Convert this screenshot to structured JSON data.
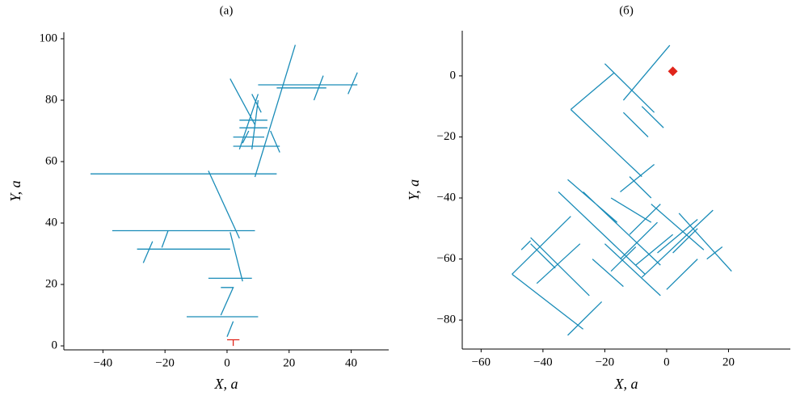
{
  "chart_data": [
    {
      "type": "line",
      "title": "(a)",
      "x_label": "X, a",
      "y_label": "Y, a",
      "xlim": [
        -52.6,
        52.1
      ],
      "ylim": [
        -1.3,
        102.1
      ],
      "xticks": [
        {
          "value": -40,
          "label": "−40"
        },
        {
          "value": -20,
          "label": "−20"
        },
        0,
        20,
        40
      ],
      "yticks": [
        0,
        20,
        40,
        60,
        80,
        100
      ],
      "series": [
        {
          "color": "#1a8cb8",
          "x": [
            -44,
            16,
            null,
            -37,
            9,
            null,
            -29,
            1,
            null,
            -19,
            -21,
            null,
            -27,
            -24,
            null,
            -6,
            4,
            null,
            1,
            5,
            null,
            -6,
            8,
            null,
            -13,
            10,
            null,
            -2,
            2,
            -2,
            null,
            2,
            0,
            null,
            1,
            9,
            null,
            10,
            4,
            null,
            4,
            13,
            null,
            2,
            12,
            null,
            2,
            17,
            null,
            8,
            11,
            null,
            9,
            22,
            null,
            10,
            42,
            null,
            16,
            32,
            null,
            28,
            31,
            null,
            39,
            42,
            null,
            14,
            17,
            null,
            5,
            7,
            null,
            8,
            10,
            null,
            4,
            13
          ],
          "values": [
            56,
            56,
            null,
            37.5,
            37.5,
            null,
            31.5,
            31.5,
            null,
            37.5,
            32,
            null,
            27,
            34,
            null,
            57,
            35,
            null,
            37,
            21,
            null,
            22,
            22,
            null,
            9.5,
            9.5,
            null,
            19,
            19,
            10,
            null,
            8,
            3,
            null,
            87,
            72,
            null,
            82,
            64,
            null,
            73.5,
            73.5,
            null,
            68,
            68,
            null,
            65,
            65,
            null,
            82,
            76,
            null,
            55,
            98,
            null,
            85,
            85,
            null,
            84,
            84,
            null,
            80,
            88,
            null,
            82,
            89,
            null,
            70,
            63,
            null,
            66,
            70,
            null,
            64,
            80,
            null,
            71,
            71
          ]
        },
        {
          "color": "#e0251b",
          "x": [
            0,
            4,
            null,
            2,
            2
          ],
          "values": [
            2,
            2,
            null,
            2,
            0
          ]
        }
      ]
    },
    {
      "type": "line",
      "title": "(б)",
      "x_label": "X, a",
      "y_label": "Y, a",
      "xlim": [
        -66.1,
        40
      ],
      "ylim": [
        -89.5,
        14.8
      ],
      "xticks": [
        {
          "value": -60,
          "label": "−60"
        },
        {
          "value": -40,
          "label": "−40"
        },
        {
          "value": -20,
          "label": "−20"
        },
        0,
        20
      ],
      "yticks": [
        {
          "value": -80,
          "label": "−80"
        },
        {
          "value": -60,
          "label": "−60"
        },
        {
          "value": -40,
          "label": "−40"
        },
        {
          "value": -20,
          "label": "−20"
        },
        0
      ],
      "series": [
        {
          "color": "#1a8cb8",
          "x": [
            -20,
            -4,
            null,
            -31,
            -8,
            null,
            -31,
            -17,
            null,
            -14,
            1,
            null,
            -8,
            -1,
            null,
            -14,
            -6,
            null,
            -15,
            -4,
            null,
            -12,
            -5,
            null,
            -50,
            -31,
            null,
            -50,
            -27,
            null,
            -32,
            -21,
            null,
            -44,
            -25,
            null,
            -32,
            -16,
            null,
            -35,
            -7,
            null,
            -27,
            -2,
            null,
            -42,
            -28,
            null,
            -5,
            -18,
            null,
            -12,
            -2,
            null,
            -5,
            12,
            null,
            -8,
            15,
            null,
            -20,
            -2,
            null,
            -3,
            10,
            null,
            4,
            21,
            null,
            -18,
            -10,
            null,
            0,
            10,
            null,
            -24,
            -14,
            null,
            -44,
            -36,
            null,
            -47,
            -44,
            null,
            2,
            10,
            null,
            -10,
            2,
            null,
            -3,
            -15,
            null,
            13,
            18
          ],
          "values": [
            4,
            -12,
            null,
            -11,
            -33,
            null,
            -11,
            1,
            null,
            -8,
            10,
            null,
            -10,
            -17,
            null,
            -12,
            -20,
            null,
            -38,
            -29,
            null,
            -33,
            -40,
            null,
            -65,
            -46,
            null,
            -65,
            -83,
            null,
            -85,
            -74,
            null,
            -53,
            -72,
            null,
            -34,
            -48,
            null,
            -38,
            -65,
            null,
            -38,
            -62,
            null,
            -68,
            -55,
            null,
            -48,
            -40,
            null,
            -52,
            -42,
            null,
            -42,
            -57,
            null,
            -66,
            -44,
            null,
            -55,
            -72,
            null,
            -58,
            -47,
            null,
            -45,
            -64,
            null,
            -64,
            -56,
            null,
            -70,
            -60,
            null,
            -60,
            -69,
            null,
            -55,
            -63,
            null,
            -57,
            -54,
            null,
            -58,
            -50,
            null,
            -62,
            -52,
            null,
            -48,
            -60,
            null,
            -60,
            -56
          ]
        },
        {
          "color": "#e0251b",
          "marker": "diamond",
          "x": [
            2
          ],
          "values": [
            1.5
          ]
        }
      ]
    }
  ]
}
